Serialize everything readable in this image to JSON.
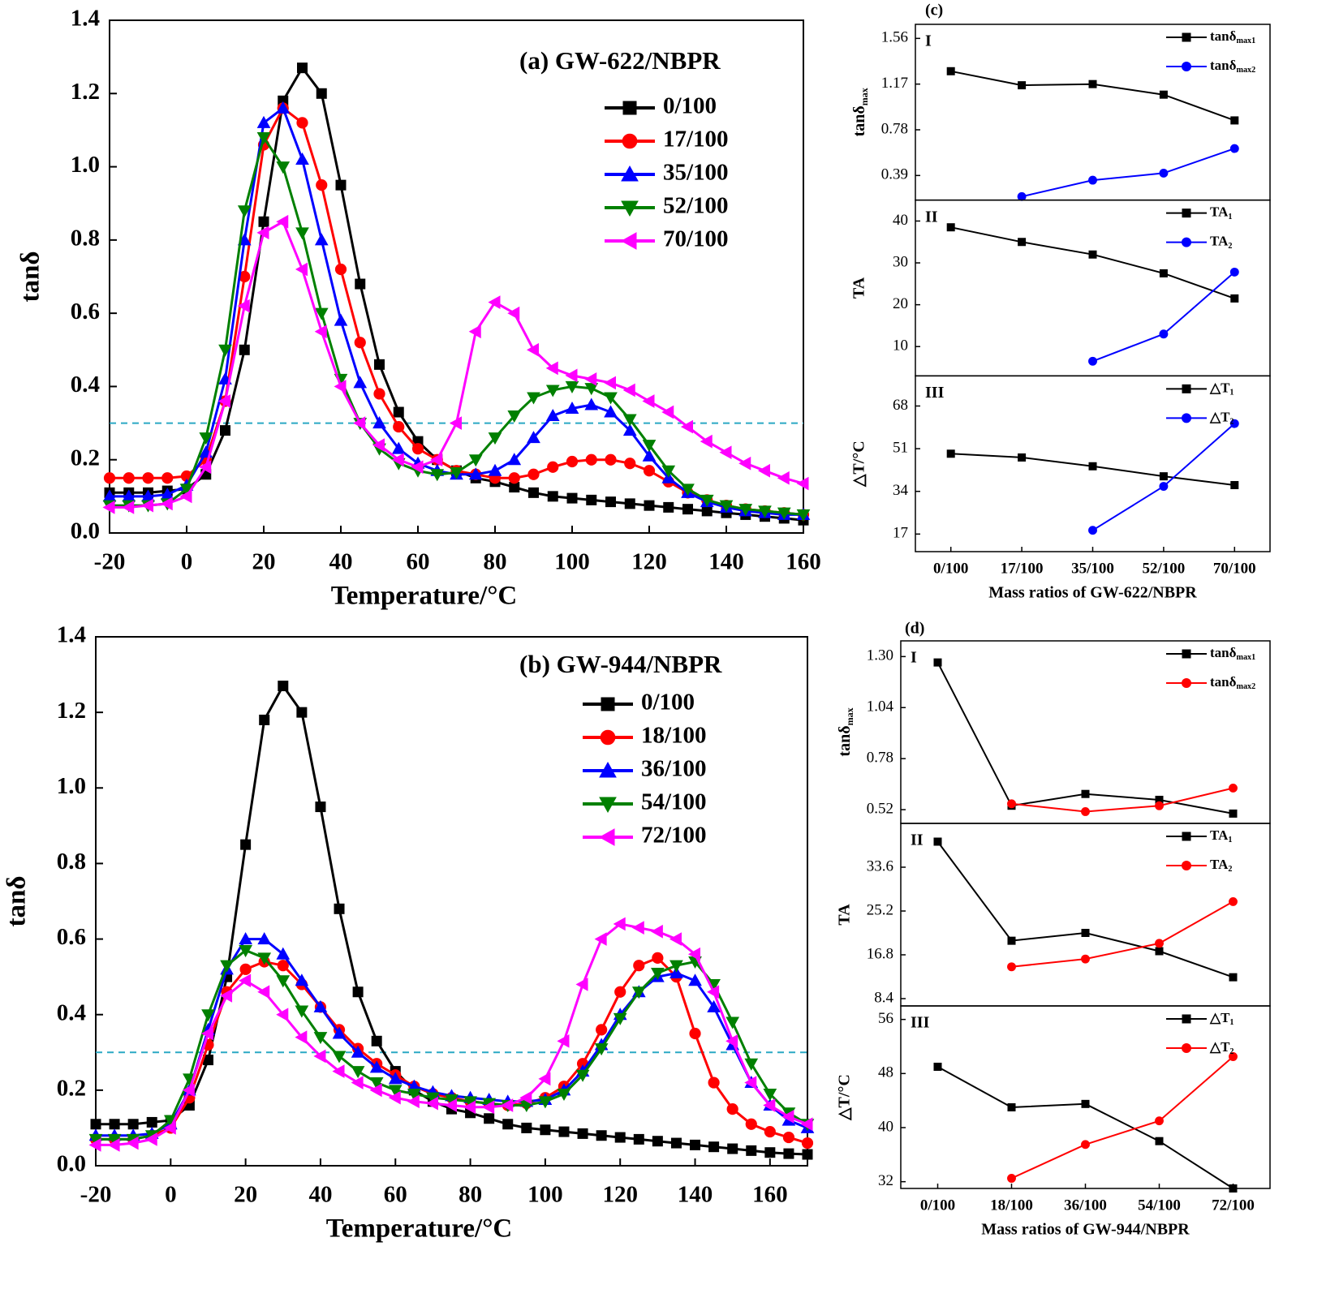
{
  "chart_data": [
    {
      "type": "line",
      "title": "(a) GW-622/NBPR",
      "x_label": "Temperature/°C",
      "y_label": "tanδ",
      "x": [
        -20,
        -15,
        -10,
        -5,
        0,
        5,
        10,
        15,
        20,
        25,
        30,
        35,
        40,
        45,
        50,
        55,
        60,
        65,
        70,
        75,
        80,
        85,
        90,
        95,
        100,
        105,
        110,
        115,
        120,
        125,
        130,
        135,
        140,
        145,
        150,
        155,
        160
      ],
      "xlim": [
        -20,
        160
      ],
      "xticks": [
        -20,
        0,
        20,
        40,
        60,
        80,
        100,
        120,
        140,
        160
      ],
      "ylim": [
        0,
        1.4
      ],
      "yticks": [
        {
          "value": 0,
          "label": "0.0"
        },
        0.2,
        0.4,
        0.6,
        0.8,
        {
          "value": 1,
          "label": "1.0"
        },
        1.2,
        1.4
      ],
      "reference_line": 0.3,
      "reference_color": "#2aa8c4",
      "series": [
        {
          "name": "0/100",
          "color": "#000000",
          "marker": "square",
          "values": [
            0.11,
            0.11,
            0.11,
            0.115,
            0.12,
            0.16,
            0.28,
            0.5,
            0.85,
            1.18,
            1.27,
            1.2,
            0.95,
            0.68,
            0.46,
            0.33,
            0.25,
            0.2,
            0.17,
            0.15,
            0.14,
            0.125,
            0.11,
            0.1,
            0.095,
            0.09,
            0.085,
            0.08,
            0.075,
            0.07,
            0.065,
            0.06,
            0.055,
            0.05,
            0.045,
            0.04,
            0.035
          ]
        },
        {
          "name": "17/100",
          "color": "#ff0000",
          "marker": "circle",
          "values": [
            0.15,
            0.15,
            0.15,
            0.15,
            0.155,
            0.2,
            0.36,
            0.7,
            1.06,
            1.16,
            1.12,
            0.95,
            0.72,
            0.52,
            0.38,
            0.29,
            0.23,
            0.2,
            0.17,
            0.16,
            0.15,
            0.15,
            0.16,
            0.18,
            0.195,
            0.2,
            0.2,
            0.19,
            0.17,
            0.14,
            0.11,
            0.09,
            0.075,
            0.065,
            0.06,
            0.055,
            0.05
          ]
        },
        {
          "name": "35/100",
          "color": "#0000ff",
          "marker": "triangle-up",
          "values": [
            0.1,
            0.1,
            0.1,
            0.105,
            0.13,
            0.22,
            0.42,
            0.8,
            1.12,
            1.16,
            1.02,
            0.8,
            0.58,
            0.41,
            0.3,
            0.23,
            0.19,
            0.17,
            0.16,
            0.16,
            0.17,
            0.2,
            0.26,
            0.32,
            0.34,
            0.35,
            0.33,
            0.28,
            0.21,
            0.15,
            0.11,
            0.085,
            0.07,
            0.06,
            0.055,
            0.05,
            0.05
          ]
        },
        {
          "name": "52/100",
          "color": "#008000",
          "marker": "triangle-down",
          "values": [
            0.075,
            0.075,
            0.075,
            0.08,
            0.12,
            0.26,
            0.5,
            0.88,
            1.08,
            1.0,
            0.82,
            0.6,
            0.42,
            0.3,
            0.23,
            0.19,
            0.17,
            0.16,
            0.165,
            0.2,
            0.26,
            0.32,
            0.37,
            0.39,
            0.4,
            0.395,
            0.37,
            0.31,
            0.24,
            0.17,
            0.12,
            0.09,
            0.075,
            0.065,
            0.06,
            0.055,
            0.05
          ]
        },
        {
          "name": "70/100",
          "color": "#ff00ff",
          "marker": "triangle-left",
          "values": [
            0.07,
            0.07,
            0.075,
            0.08,
            0.1,
            0.18,
            0.36,
            0.62,
            0.82,
            0.85,
            0.72,
            0.55,
            0.4,
            0.3,
            0.24,
            0.2,
            0.18,
            0.2,
            0.3,
            0.55,
            0.63,
            0.6,
            0.5,
            0.45,
            0.43,
            0.42,
            0.41,
            0.39,
            0.36,
            0.33,
            0.29,
            0.25,
            0.22,
            0.19,
            0.17,
            0.15,
            0.135
          ]
        }
      ]
    },
    {
      "type": "line",
      "title": "(b) GW-944/NBPR",
      "x_label": "Temperature/°C",
      "y_label": "tanδ",
      "x": [
        -20,
        -15,
        -10,
        -5,
        0,
        5,
        10,
        15,
        20,
        25,
        30,
        35,
        40,
        45,
        50,
        55,
        60,
        65,
        70,
        75,
        80,
        85,
        90,
        95,
        100,
        105,
        110,
        115,
        120,
        125,
        130,
        135,
        140,
        145,
        150,
        155,
        160,
        165,
        170
      ],
      "xlim": [
        -20,
        170
      ],
      "xticks": [
        -20,
        0,
        20,
        40,
        60,
        80,
        100,
        120,
        140,
        160
      ],
      "ylim": [
        0,
        1.4
      ],
      "yticks": [
        {
          "value": 0,
          "label": "0.0"
        },
        0.2,
        0.4,
        0.6,
        0.8,
        {
          "value": 1,
          "label": "1.0"
        },
        1.2,
        1.4
      ],
      "reference_line": 0.3,
      "reference_color": "#2aa8c4",
      "series": [
        {
          "name": "0/100",
          "color": "#000000",
          "marker": "square",
          "values": [
            0.11,
            0.11,
            0.11,
            0.115,
            0.12,
            0.16,
            0.28,
            0.5,
            0.85,
            1.18,
            1.27,
            1.2,
            0.95,
            0.68,
            0.46,
            0.33,
            0.25,
            0.2,
            0.17,
            0.15,
            0.14,
            0.125,
            0.11,
            0.1,
            0.095,
            0.09,
            0.085,
            0.08,
            0.075,
            0.07,
            0.065,
            0.06,
            0.055,
            0.05,
            0.045,
            0.04,
            0.035,
            0.032,
            0.03
          ]
        },
        {
          "name": "18/100",
          "color": "#ff0000",
          "marker": "circle",
          "values": [
            0.07,
            0.07,
            0.07,
            0.08,
            0.1,
            0.18,
            0.32,
            0.46,
            0.52,
            0.54,
            0.53,
            0.48,
            0.42,
            0.36,
            0.31,
            0.27,
            0.24,
            0.21,
            0.19,
            0.18,
            0.17,
            0.165,
            0.16,
            0.165,
            0.18,
            0.21,
            0.27,
            0.36,
            0.46,
            0.53,
            0.55,
            0.5,
            0.35,
            0.22,
            0.15,
            0.11,
            0.09,
            0.075,
            0.06
          ]
        },
        {
          "name": "36/100",
          "color": "#0000ff",
          "marker": "triangle-up",
          "values": [
            0.08,
            0.08,
            0.08,
            0.085,
            0.11,
            0.2,
            0.36,
            0.52,
            0.6,
            0.6,
            0.56,
            0.49,
            0.42,
            0.35,
            0.3,
            0.26,
            0.23,
            0.21,
            0.195,
            0.185,
            0.18,
            0.175,
            0.17,
            0.17,
            0.175,
            0.2,
            0.25,
            0.32,
            0.4,
            0.46,
            0.5,
            0.51,
            0.49,
            0.42,
            0.32,
            0.22,
            0.16,
            0.12,
            0.1
          ]
        },
        {
          "name": "54/100",
          "color": "#008000",
          "marker": "triangle-down",
          "values": [
            0.07,
            0.07,
            0.07,
            0.08,
            0.12,
            0.23,
            0.4,
            0.53,
            0.57,
            0.55,
            0.49,
            0.41,
            0.34,
            0.29,
            0.25,
            0.22,
            0.2,
            0.19,
            0.18,
            0.175,
            0.17,
            0.165,
            0.16,
            0.16,
            0.17,
            0.19,
            0.24,
            0.31,
            0.39,
            0.46,
            0.51,
            0.53,
            0.54,
            0.48,
            0.38,
            0.27,
            0.19,
            0.14,
            0.11
          ]
        },
        {
          "name": "72/100",
          "color": "#ff00ff",
          "marker": "triangle-left",
          "values": [
            0.055,
            0.055,
            0.06,
            0.07,
            0.1,
            0.2,
            0.35,
            0.45,
            0.49,
            0.46,
            0.4,
            0.34,
            0.29,
            0.25,
            0.22,
            0.2,
            0.18,
            0.17,
            0.165,
            0.16,
            0.155,
            0.155,
            0.16,
            0.18,
            0.23,
            0.33,
            0.48,
            0.6,
            0.64,
            0.63,
            0.62,
            0.6,
            0.56,
            0.46,
            0.33,
            0.22,
            0.16,
            0.13,
            0.11
          ]
        }
      ]
    },
    {
      "type": "line",
      "title": "(c)",
      "x_label": "Mass ratios of GW-622/NBPR",
      "categories": [
        "0/100",
        "17/100",
        "35/100",
        "52/100",
        "70/100"
      ],
      "panels": [
        {
          "label": "I",
          "y_label": "tanδmax",
          "ylim": [
            0.18,
            1.68
          ],
          "yticks": [
            0.39,
            0.78,
            1.17,
            1.56
          ],
          "series": [
            {
              "name": "tanδmax1",
              "color": "#000000",
              "marker": "square",
              "values": [
                1.28,
                1.16,
                1.17,
                1.08,
                0.86
              ]
            },
            {
              "name": "tanδmax2",
              "color": "#0000ff",
              "marker": "circle",
              "values": [
                null,
                0.21,
                0.35,
                0.41,
                0.62
              ]
            }
          ]
        },
        {
          "label": "II",
          "y_label": "TA",
          "ylim": [
            3,
            45
          ],
          "yticks": [
            10,
            20,
            30,
            40
          ],
          "series": [
            {
              "name": "TA1",
              "color": "#000000",
              "marker": "square",
              "values": [
                38.5,
                35,
                32,
                27.5,
                21.5
              ]
            },
            {
              "name": "TA2",
              "color": "#0000ff",
              "marker": "circle",
              "values": [
                null,
                null,
                6.5,
                13,
                27.8
              ]
            }
          ]
        },
        {
          "label": "III",
          "y_label": "△T/°C",
          "ylim": [
            10,
            80
          ],
          "yticks": [
            17,
            34,
            51,
            68
          ],
          "series": [
            {
              "name": "△T1",
              "color": "#000000",
              "marker": "square",
              "values": [
                49,
                47.5,
                44,
                40,
                36.5
              ]
            },
            {
              "name": "△T2",
              "color": "#0000ff",
              "marker": "circle",
              "values": [
                null,
                null,
                18.5,
                36,
                61
              ]
            }
          ]
        }
      ]
    },
    {
      "type": "line",
      "title": "(d)",
      "x_label": "Mass ratios of GW-944/NBPR",
      "categories": [
        "0/100",
        "18/100",
        "36/100",
        "54/100",
        "72/100"
      ],
      "panels": [
        {
          "label": "I",
          "y_label": "tanδmax",
          "ylim": [
            0.45,
            1.38
          ],
          "yticks": [
            0.52,
            0.78,
            1.04,
            {
              "value": 1.3,
              "label": "1.30"
            }
          ],
          "series": [
            {
              "name": "tanδmax1",
              "color": "#000000",
              "marker": "square",
              "values": [
                1.27,
                0.54,
                0.6,
                0.57,
                0.5
              ]
            },
            {
              "name": "tanδmax2",
              "color": "#ff0000",
              "marker": "circle",
              "values": [
                null,
                0.55,
                0.51,
                0.54,
                0.63
              ]
            }
          ]
        },
        {
          "label": "II",
          "y_label": "TA",
          "ylim": [
            7,
            42
          ],
          "yticks": [
            8.4,
            16.8,
            25.2,
            33.6
          ],
          "series": [
            {
              "name": "TA1",
              "color": "#000000",
              "marker": "square",
              "values": [
                38.5,
                19.5,
                21,
                17.5,
                12.5
              ]
            },
            {
              "name": "TA2",
              "color": "#ff0000",
              "marker": "circle",
              "values": [
                null,
                14.5,
                16,
                19,
                27
              ]
            }
          ]
        },
        {
          "label": "III",
          "y_label": "△T/°C",
          "ylim": [
            31,
            58
          ],
          "yticks": [
            32,
            40,
            48,
            56
          ],
          "series": [
            {
              "name": "△T1",
              "color": "#000000",
              "marker": "square",
              "values": [
                49,
                43,
                43.5,
                38,
                31
              ]
            },
            {
              "name": "△T2",
              "color": "#ff0000",
              "marker": "circle",
              "values": [
                null,
                32.5,
                37.5,
                41,
                50.5
              ]
            }
          ]
        }
      ]
    }
  ]
}
